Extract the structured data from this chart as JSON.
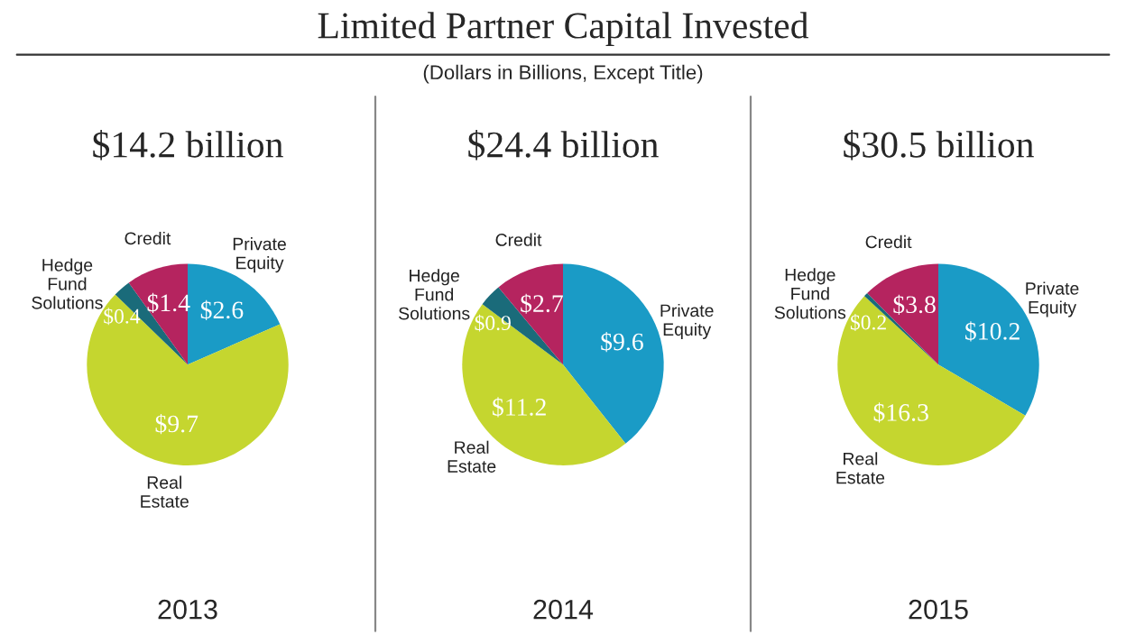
{
  "chart_data": [
    {
      "type": "pie",
      "title": "$14.2 billion",
      "xlabel": "2013",
      "categories": [
        "Private\nEquity",
        "Real\nEstate",
        "Hedge\nFund\nSolutions",
        "Credit"
      ],
      "values": [
        2.6,
        9.7,
        0.4,
        1.4
      ],
      "value_labels": [
        "$2.6",
        "$9.7",
        "$0.4",
        "$1.4"
      ],
      "colors": [
        "#1a9bc6",
        "#c5d62f",
        "#1a6b7a",
        "#b5245f"
      ],
      "legend": false,
      "annotations": [
        "Limited Partner Capital Invested",
        "(Dollars in Billions, Except Title)"
      ]
    },
    {
      "type": "pie",
      "title": "$24.4 billion",
      "xlabel": "2014",
      "categories": [
        "Private\nEquity",
        "Real\nEstate",
        "Hedge\nFund\nSolutions",
        "Credit"
      ],
      "values": [
        9.6,
        11.2,
        0.9,
        2.7
      ],
      "value_labels": [
        "$9.6",
        "$11.2",
        "$0.9",
        "$2.7"
      ],
      "colors": [
        "#1a9bc6",
        "#c5d62f",
        "#1a6b7a",
        "#b5245f"
      ],
      "legend": false
    },
    {
      "type": "pie",
      "title": "$30.5 billion",
      "xlabel": "2015",
      "categories": [
        "Private\nEquity",
        "Real\nEstate",
        "Hedge\nFund\nSolutions",
        "Credit"
      ],
      "values": [
        10.2,
        16.3,
        0.2,
        3.8
      ],
      "value_labels": [
        "$10.2",
        "$16.3",
        "$0.2",
        "$3.8"
      ],
      "colors": [
        "#1a9bc6",
        "#c5d62f",
        "#1a6b7a",
        "#b5245f"
      ],
      "legend": false
    }
  ]
}
